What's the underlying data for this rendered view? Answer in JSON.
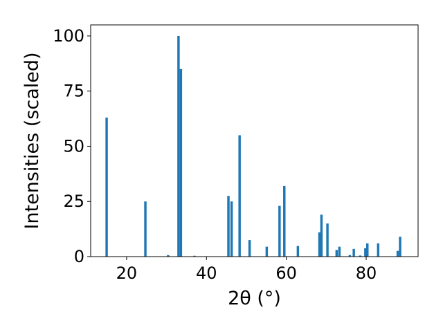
{
  "chart_data": {
    "type": "bar",
    "xlabel": "2θ (°)",
    "ylabel": "Intensities (scaled)",
    "xlim": [
      11.0,
      93.0
    ],
    "ylim": [
      0,
      105
    ],
    "xticks": [
      20,
      40,
      60,
      80
    ],
    "yticks": [
      0,
      25,
      50,
      75,
      100
    ],
    "bar_color": "#1f77b4",
    "bar_width_deg": 0.6,
    "grid": false,
    "series": [
      {
        "x": [
          15.0,
          24.7,
          30.4,
          33.0,
          33.6,
          37.0,
          45.5,
          46.3,
          48.3,
          50.8,
          55.1,
          58.3,
          59.5,
          62.9,
          68.3,
          68.8,
          70.3,
          72.6,
          73.3,
          75.9,
          76.9,
          78.5,
          79.8,
          80.3,
          83.0,
          87.9,
          88.5
        ],
        "y": [
          63,
          25,
          0.7,
          100,
          85,
          0.4,
          27.5,
          25,
          55,
          7.5,
          4.5,
          23,
          32,
          4.8,
          11,
          19,
          15,
          3,
          4.5,
          0.7,
          3.5,
          0.5,
          3.8,
          6,
          6,
          2.6,
          9
        ]
      }
    ]
  }
}
